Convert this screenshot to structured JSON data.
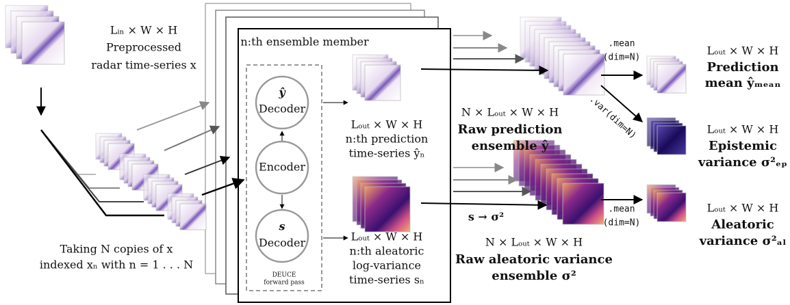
{
  "input": {
    "dims": "Lᵢₙ × W × H",
    "lines": [
      "Preprocessed",
      "radar time-series x"
    ]
  },
  "copies": {
    "lines": [
      "Taking N copies of x",
      "indexed xₙ with n = 1 . . . N"
    ]
  },
  "member": {
    "title": "n:th ensemble member",
    "decoder_y": [
      "ŷ",
      "Decoder"
    ],
    "encoder": "Encoder",
    "decoder_s": [
      "s",
      "Decoder"
    ],
    "deuce": [
      "DEUCE",
      "forward pass"
    ],
    "pred": {
      "dims": "Lₒᵤₜ × W × H",
      "lines": [
        "n:th prediction",
        "time-series ŷₙ"
      ]
    },
    "logvar": {
      "dims": "Lₒᵤₜ × W × H",
      "lines": [
        "n:th aleatoric",
        "log-variance",
        "time-series sₙ"
      ]
    }
  },
  "ensemble": {
    "prediction": {
      "dims": "N × Lₒᵤₜ × W × H",
      "lines": [
        "Raw prediction",
        "ensemble ŷ"
      ]
    },
    "transform": "s → σ²",
    "aleatoric": {
      "dims": "N × Lₒᵤₜ × W × H",
      "lines": [
        "Raw aleatoric variance",
        "ensemble σ²"
      ]
    }
  },
  "ops": {
    "mean_prediction": [
      ".mean",
      "(dim=N)"
    ],
    "var_prediction": ".var(dim=N)",
    "mean_aleatoric": [
      ".mean",
      "(dim=N)"
    ]
  },
  "outputs": [
    {
      "dims": "Lₒᵤₜ × W × H",
      "lines": [
        "Prediction",
        "mean ŷₘₑₐₙ"
      ]
    },
    {
      "dims": "Lₒᵤₜ × W × H",
      "lines": [
        "Epistemic",
        "variance σ²ₑₚ"
      ]
    },
    {
      "dims": "Lₒᵤₜ × W × H",
      "lines": [
        "Aleatoric",
        "variance σ²ₐₗ"
      ]
    }
  ]
}
